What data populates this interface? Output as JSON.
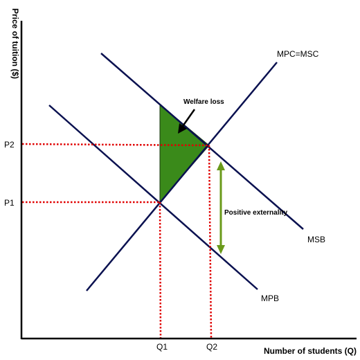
{
  "axes": {
    "y_title": "Price of tuition ($)",
    "x_title": "Number of students (Q)"
  },
  "prices": {
    "p1": "P1",
    "p2": "P2"
  },
  "quantities": {
    "q1": "Q1",
    "q2": "Q2"
  },
  "curves": {
    "supply": "MPC=MSC",
    "social_benefit": "MSB",
    "private_benefit": "MPB"
  },
  "annotations": {
    "welfare_loss": "Welfare loss",
    "positive_externality": "Positive externality"
  },
  "colors": {
    "curve": "#0a1150",
    "guide": "#e00000",
    "welfare_fill": "#3a8a1a",
    "externality_arrow": "#6a9a1a",
    "axis": "#000000"
  }
}
